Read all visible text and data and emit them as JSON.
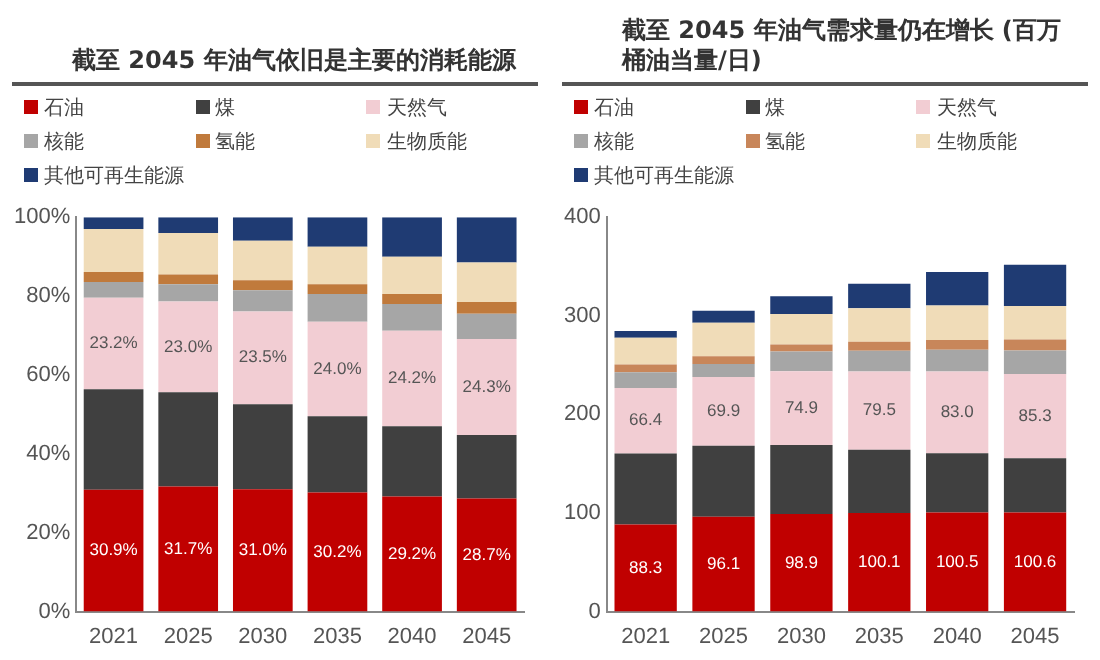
{
  "chart_data": [
    {
      "type": "bar",
      "title": "截至 2045 年油气依旧是主要的消耗能源",
      "stacked": true,
      "legend": "top",
      "grid": false,
      "categories": [
        "2021",
        "2025",
        "2030",
        "2035",
        "2040",
        "2045"
      ],
      "ylim": [
        0,
        100
      ],
      "yticks": [
        {
          "value": 0,
          "label": "0%"
        },
        {
          "value": 20,
          "label": "20%"
        },
        {
          "value": 40,
          "label": "40%"
        },
        {
          "value": 60,
          "label": "60%"
        },
        {
          "value": 80,
          "label": "80%"
        },
        {
          "value": 100,
          "label": "100%"
        }
      ],
      "series": [
        {
          "name": "石油",
          "color": "#c00000",
          "values": [
            30.9,
            31.7,
            31.0,
            30.2,
            29.2,
            28.7
          ],
          "value_labels": [
            "30.9%",
            "31.7%",
            "31.0%",
            "30.2%",
            "29.2%",
            "28.7%"
          ]
        },
        {
          "name": "煤",
          "color": "#404040",
          "values": [
            25.5,
            23.9,
            21.6,
            19.3,
            17.8,
            16.1
          ]
        },
        {
          "name": "天然气",
          "color": "#f2cdd3",
          "values": [
            23.2,
            23.0,
            23.5,
            24.0,
            24.2,
            24.3
          ],
          "value_labels": [
            "23.2%",
            "23.0%",
            "23.5%",
            "24.0%",
            "24.2%",
            "24.3%"
          ]
        },
        {
          "name": "核能",
          "color": "#a6a6a6",
          "values": [
            4.0,
            4.4,
            5.4,
            7.0,
            6.8,
            6.4
          ]
        },
        {
          "name": "氢能",
          "color": "#c07a3c",
          "values": [
            2.5,
            2.5,
            2.5,
            2.5,
            2.5,
            3.0
          ]
        },
        {
          "name": "生物质能",
          "color": "#f0dcb8",
          "values": [
            10.9,
            10.5,
            10.0,
            9.5,
            9.5,
            10.0
          ]
        },
        {
          "name": "其他可再生能源",
          "color": "#1f3b73",
          "values": [
            3.0,
            4.0,
            6.0,
            7.5,
            10.0,
            11.5
          ]
        }
      ]
    },
    {
      "type": "bar",
      "title": "截至 2045 年油气需求量仍在增长 (百万桶油当量/日)",
      "stacked": true,
      "legend": "top",
      "grid": false,
      "categories": [
        "2021",
        "2025",
        "2030",
        "2035",
        "2040",
        "2045"
      ],
      "ylim": [
        0,
        400
      ],
      "yticks": [
        0,
        100,
        200,
        300,
        400
      ],
      "series": [
        {
          "name": "石油",
          "color": "#c00000",
          "values": [
            88.3,
            96.1,
            98.9,
            100.1,
            100.5,
            100.6
          ],
          "value_labels": [
            "88.3",
            "96.1",
            "98.9",
            "100.1",
            "100.5",
            "100.6"
          ]
        },
        {
          "name": "煤",
          "color": "#404040",
          "values": [
            72,
            72,
            70,
            64,
            60,
            55
          ]
        },
        {
          "name": "天然气",
          "color": "#f2cdd3",
          "values": [
            66.4,
            69.9,
            74.9,
            79.5,
            83.0,
            85.3
          ],
          "value_labels": [
            "66.4",
            "69.9",
            "74.9",
            "79.5",
            "83.0",
            "85.3"
          ]
        },
        {
          "name": "核能",
          "color": "#a6a6a6",
          "values": [
            16,
            13,
            20,
            21,
            22,
            24
          ]
        },
        {
          "name": "氢能",
          "color": "#c8865a",
          "values": [
            8,
            8,
            7,
            9,
            10,
            11
          ]
        },
        {
          "name": "生物质能",
          "color": "#f0dcb8",
          "values": [
            27,
            34,
            31,
            34,
            35,
            34
          ]
        },
        {
          "name": "其他可再生能源",
          "color": "#1f3b73",
          "values": [
            7,
            12,
            18,
            25,
            34,
            42
          ]
        }
      ]
    }
  ]
}
